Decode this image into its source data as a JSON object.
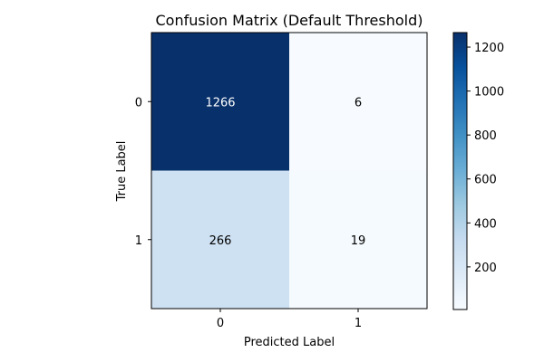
{
  "chart_data": {
    "type": "heatmap",
    "title": "Confusion Matrix (Default Threshold)",
    "xlabel": "Predicted Label",
    "ylabel": "True Label",
    "x_categories": [
      "0",
      "1"
    ],
    "y_categories": [
      "0",
      "1"
    ],
    "values": [
      [
        1266,
        6
      ],
      [
        266,
        19
      ]
    ],
    "colormap": "Blues",
    "colorbar": {
      "range": [
        6,
        1266
      ],
      "ticks": [
        200,
        400,
        600,
        800,
        1000,
        1200
      ],
      "tick_labels": [
        "200",
        "400",
        "600",
        "800",
        "1000",
        "1200"
      ]
    },
    "grid": false,
    "annotation_colors": {
      "dark_cell": "#ffffff",
      "light_cell": "#000000"
    }
  }
}
